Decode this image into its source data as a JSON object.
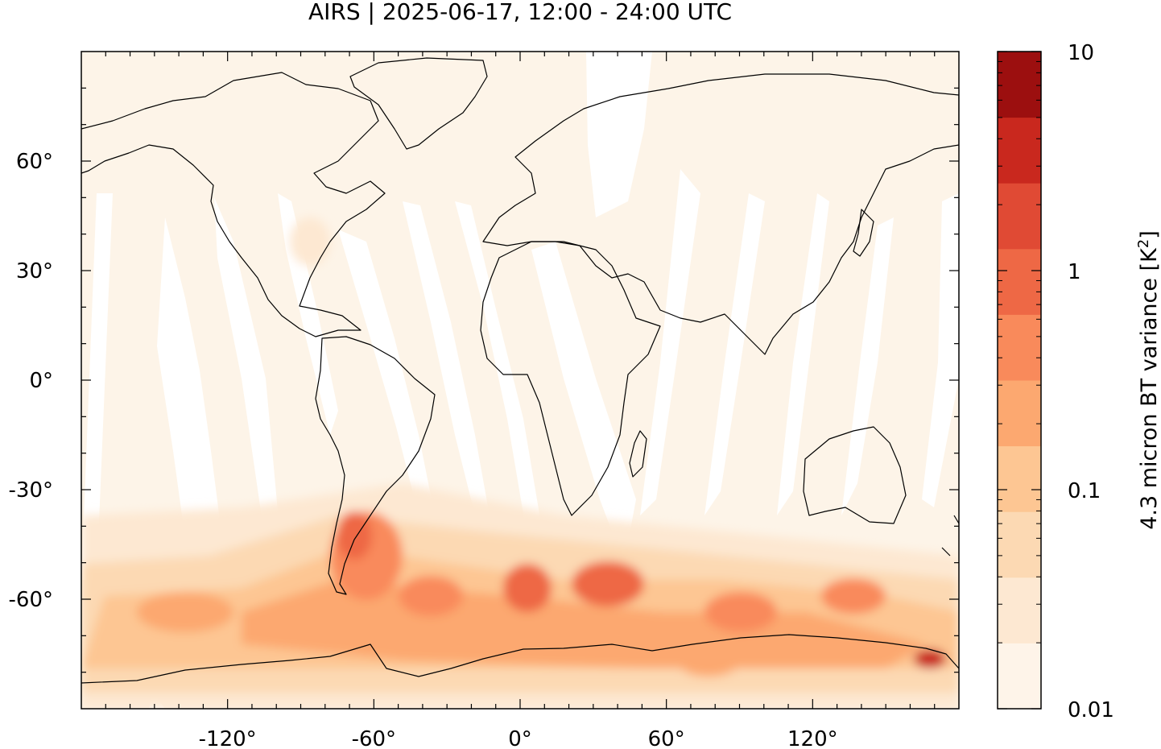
{
  "title": "AIRS | 2025-06-17, 12:00 - 24:00 UTC",
  "map": {
    "x_ticks": [
      {
        "value": -120,
        "label": "-120°"
      },
      {
        "value": -60,
        "label": "-60°"
      },
      {
        "value": 0,
        "label": "0°"
      },
      {
        "value": 60,
        "label": "60°"
      },
      {
        "value": 120,
        "label": "120°"
      }
    ],
    "y_ticks": [
      {
        "value": 60,
        "label": "60°"
      },
      {
        "value": 30,
        "label": "30°"
      },
      {
        "value": 0,
        "label": "0°"
      },
      {
        "value": -30,
        "label": "-30°"
      },
      {
        "value": -60,
        "label": "-60°"
      }
    ],
    "lon_range": [
      -180,
      180
    ],
    "lat_range": [
      -90,
      90
    ],
    "background_color": "#fdf4e8"
  },
  "colorbar": {
    "label": "4.3 micron BT variance [K²]",
    "label_base": "4.3 micron BT variance [K",
    "label_sup": "2",
    "label_end": "]",
    "scale": "log",
    "range": [
      0.01,
      10
    ],
    "tick_labels": [
      {
        "value": 10,
        "label": "10"
      },
      {
        "value": 1,
        "label": "1"
      },
      {
        "value": 0.1,
        "label": "0.1"
      },
      {
        "value": 0.01,
        "label": "0.01"
      }
    ],
    "colors_bottom_to_top": [
      "#fef4e9",
      "#fde8d2",
      "#fcd9b3",
      "#fdc693",
      "#fca870",
      "#f98a5b",
      "#ee6845",
      "#e04a34",
      "#c9281e",
      "#9c0f0f"
    ]
  }
}
